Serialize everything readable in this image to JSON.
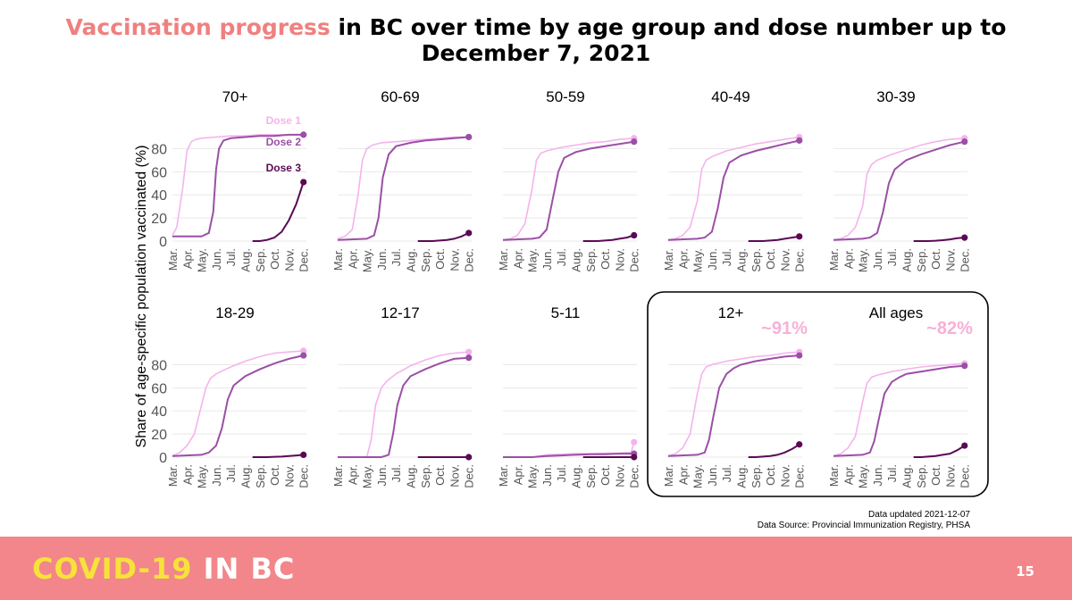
{
  "title": {
    "highlight": "Vaccination progress",
    "rest_line1": " in BC over time by age group and dose number up to",
    "line2": "December 7, 2021"
  },
  "y_axis_label": "Share of age-specific population vaccinated (%)",
  "footer": {
    "updated": "Data updated 2021-12-07",
    "source": "Data Source: Provincial Immunization Registry, PHSA"
  },
  "banner": {
    "brand_part1": "COVID-19",
    "brand_part2": "IN BC",
    "page_number": "15"
  },
  "colors": {
    "dose1": "#f5b3ec",
    "dose2": "#9b4fa6",
    "dose3": "#5a0a55",
    "grid": "#e8e8e8",
    "annotation": "#f7b0d7"
  },
  "chart_data": {
    "type": "line",
    "x_ticks": [
      "Mar.",
      "Apr.",
      "May.",
      "Jun.",
      "Jul.",
      "Aug.",
      "Sep.",
      "Oct.",
      "Nov.",
      "Dec."
    ],
    "y_ticks": [
      0,
      20,
      40,
      60,
      80
    ],
    "ylim": [
      0,
      95
    ],
    "xlim": [
      0,
      9.2
    ],
    "ylabel": "Share of age-specific population vaccinated (%)",
    "series_names": [
      "Dose 1",
      "Dose 2",
      "Dose 3"
    ],
    "panels": [
      {
        "title": "70+",
        "series": [
          {
            "name": "Dose 1",
            "x": [
              0,
              0.3,
              0.7,
              1.0,
              1.3,
              1.6,
              2,
              3,
              4,
              5,
              6,
              7,
              8,
              9
            ],
            "y": [
              5,
              12,
              45,
              78,
              86,
              88,
              89,
              90,
              91,
              91,
              92,
              92,
              92,
              92
            ]
          },
          {
            "name": "Dose 2",
            "x": [
              0,
              1,
              2,
              2.5,
              2.8,
              3.0,
              3.2,
              3.5,
              4,
              5,
              6,
              7,
              8,
              9
            ],
            "y": [
              4,
              4,
              4,
              7,
              25,
              62,
              80,
              87,
              89,
              90,
              91,
              91,
              92,
              92
            ]
          },
          {
            "name": "Dose 3",
            "x": [
              5.5,
              6,
              6.5,
              7,
              7.5,
              8,
              8.5,
              9
            ],
            "y": [
              0,
              0,
              1,
              3,
              8,
              18,
              32,
              51
            ]
          }
        ]
      },
      {
        "title": "60-69",
        "series": [
          {
            "name": "Dose 1",
            "x": [
              0,
              0.5,
              1,
              1.4,
              1.7,
              2,
              2.4,
              3,
              4,
              5,
              6,
              7,
              8,
              9
            ],
            "y": [
              2,
              4,
              10,
              40,
              70,
              80,
              83,
              85,
              86,
              87,
              88,
              89,
              90,
              90
            ]
          },
          {
            "name": "Dose 2",
            "x": [
              0,
              2,
              2.5,
              2.8,
              3.1,
              3.5,
              4,
              5,
              6,
              7,
              8,
              9
            ],
            "y": [
              1,
              2,
              5,
              20,
              55,
              75,
              82,
              85,
              87,
              88,
              89,
              90
            ]
          },
          {
            "name": "Dose 3",
            "x": [
              5.5,
              6,
              6.5,
              7,
              7.5,
              8,
              8.5,
              9
            ],
            "y": [
              0,
              0,
              0,
              0.5,
              1,
              2,
              4,
              7
            ]
          }
        ]
      },
      {
        "title": "50-59",
        "series": [
          {
            "name": "Dose 1",
            "x": [
              0,
              0.5,
              1,
              1.5,
              2,
              2.3,
              2.6,
              3,
              4,
              5,
              6,
              7,
              8,
              9
            ],
            "y": [
              1,
              2,
              5,
              15,
              45,
              70,
              76,
              78,
              81,
              83,
              85,
              86,
              88,
              89
            ]
          },
          {
            "name": "Dose 2",
            "x": [
              0,
              2,
              2.5,
              3,
              3.4,
              3.8,
              4.2,
              5,
              6,
              7,
              8,
              9
            ],
            "y": [
              1,
              2,
              3,
              10,
              35,
              60,
              72,
              77,
              80,
              82,
              84,
              86
            ]
          },
          {
            "name": "Dose 3",
            "x": [
              5.5,
              6,
              6.5,
              7,
              7.5,
              8,
              8.5,
              9
            ],
            "y": [
              0,
              0,
              0,
              0.5,
              1,
              2,
              3,
              5
            ]
          }
        ]
      },
      {
        "title": "40-49",
        "series": [
          {
            "name": "Dose 1",
            "x": [
              0,
              0.5,
              1,
              1.5,
              2,
              2.3,
              2.6,
              3,
              4,
              5,
              6,
              7,
              8,
              9
            ],
            "y": [
              1,
              2,
              5,
              12,
              35,
              62,
              70,
              73,
              78,
              81,
              84,
              86,
              88,
              90
            ]
          },
          {
            "name": "Dose 2",
            "x": [
              0,
              2,
              2.5,
              3,
              3.4,
              3.8,
              4.2,
              5,
              6,
              7,
              8,
              9
            ],
            "y": [
              1,
              2,
              3,
              8,
              28,
              55,
              68,
              74,
              78,
              81,
              84,
              87
            ]
          },
          {
            "name": "Dose 3",
            "x": [
              5.5,
              6,
              6.5,
              7,
              7.5,
              8,
              8.5,
              9
            ],
            "y": [
              0,
              0,
              0,
              0.5,
              1,
              2,
              3,
              4
            ]
          }
        ]
      },
      {
        "title": "30-39",
        "series": [
          {
            "name": "Dose 1",
            "x": [
              0,
              0.5,
              1,
              1.5,
              2,
              2.3,
              2.6,
              3,
              4,
              5,
              6,
              7,
              8,
              9
            ],
            "y": [
              1,
              2,
              5,
              12,
              30,
              58,
              66,
              70,
              75,
              79,
              83,
              86,
              88,
              89
            ]
          },
          {
            "name": "Dose 2",
            "x": [
              0,
              2,
              2.5,
              3,
              3.4,
              3.8,
              4.2,
              5,
              6,
              7,
              8,
              9
            ],
            "y": [
              1,
              2,
              3,
              7,
              25,
              50,
              62,
              70,
              75,
              79,
              83,
              86
            ]
          },
          {
            "name": "Dose 3",
            "x": [
              5.5,
              6,
              6.5,
              7,
              7.5,
              8,
              8.5,
              9
            ],
            "y": [
              0,
              0,
              0,
              0.3,
              0.8,
              1.5,
              2.5,
              3
            ]
          }
        ]
      },
      {
        "title": "18-29",
        "series": [
          {
            "name": "Dose 1",
            "x": [
              0,
              0.5,
              1,
              1.5,
              2,
              2.3,
              2.6,
              3,
              4,
              5,
              6,
              7,
              8,
              9
            ],
            "y": [
              1,
              4,
              10,
              20,
              45,
              60,
              68,
              72,
              78,
              83,
              87,
              90,
              91,
              92
            ]
          },
          {
            "name": "Dose 2",
            "x": [
              0,
              2,
              2.5,
              3,
              3.4,
              3.8,
              4.2,
              5,
              6,
              7,
              8,
              9
            ],
            "y": [
              1,
              2,
              4,
              10,
              25,
              50,
              62,
              70,
              76,
              81,
              85,
              88
            ]
          },
          {
            "name": "Dose 3",
            "x": [
              5.5,
              6,
              6.5,
              7,
              7.5,
              8,
              8.5,
              9
            ],
            "y": [
              0,
              0,
              0,
              0.3,
              0.5,
              1,
              1.5,
              2
            ]
          }
        ]
      },
      {
        "title": "12-17",
        "series": [
          {
            "name": "Dose 1",
            "x": [
              0,
              1,
              2,
              2.3,
              2.6,
              3,
              3.4,
              4,
              5,
              6,
              7,
              8,
              9
            ],
            "y": [
              0,
              0,
              0,
              15,
              45,
              60,
              66,
              72,
              79,
              84,
              88,
              90,
              91
            ]
          },
          {
            "name": "Dose 2",
            "x": [
              0,
              3,
              3.5,
              3.8,
              4.1,
              4.5,
              5,
              6,
              7,
              8,
              9
            ],
            "y": [
              0,
              0,
              2,
              20,
              45,
              62,
              70,
              76,
              81,
              85,
              86
            ]
          },
          {
            "name": "Dose 3",
            "x": [
              5.5,
              6,
              7,
              8,
              9
            ],
            "y": [
              0,
              0,
              0,
              0,
              0
            ]
          }
        ]
      },
      {
        "title": "5-11",
        "series": [
          {
            "name": "Dose 1",
            "x": [
              0,
              2,
              2.5,
              3,
              4,
              5,
              6,
              7,
              8,
              8.8,
              9
            ],
            "y": [
              0,
              0,
              1,
              2,
              2.5,
              3,
              3,
              3.5,
              3.5,
              4,
              13
            ]
          },
          {
            "name": "Dose 2",
            "x": [
              0,
              2,
              2.5,
              3,
              4,
              5,
              6,
              7,
              8,
              9
            ],
            "y": [
              0,
              0,
              0.5,
              1,
              1.5,
              2,
              2.5,
              2.5,
              3,
              3
            ]
          },
          {
            "name": "Dose 3",
            "x": [
              5.5,
              6,
              7,
              8,
              9
            ],
            "y": [
              0,
              0,
              0,
              0,
              0
            ]
          }
        ]
      },
      {
        "title": "12+",
        "annotation": "~91%",
        "series": [
          {
            "name": "Dose 1",
            "x": [
              0,
              0.5,
              1,
              1.5,
              2,
              2.3,
              2.6,
              3,
              4,
              5,
              6,
              7,
              8,
              9
            ],
            "y": [
              1,
              3,
              8,
              20,
              55,
              72,
              78,
              80,
              83,
              85,
              87,
              88,
              90,
              91
            ]
          },
          {
            "name": "Dose 2",
            "x": [
              0,
              2,
              2.5,
              2.8,
              3.1,
              3.5,
              4,
              4.5,
              5,
              6,
              7,
              8,
              9
            ],
            "y": [
              1,
              2,
              4,
              15,
              35,
              60,
              72,
              77,
              80,
              83,
              85,
              87,
              88
            ]
          },
          {
            "name": "Dose 3",
            "x": [
              5.5,
              6,
              6.5,
              7,
              7.5,
              8,
              8.5,
              9
            ],
            "y": [
              0,
              0,
              0.5,
              1,
              2,
              4,
              7,
              11
            ]
          }
        ]
      },
      {
        "title": "All ages",
        "annotation": "~82%",
        "series": [
          {
            "name": "Dose 1",
            "x": [
              0,
              0.5,
              1,
              1.5,
              2,
              2.3,
              2.6,
              3,
              4,
              5,
              6,
              7,
              8,
              9
            ],
            "y": [
              1,
              3,
              8,
              18,
              48,
              64,
              69,
              71,
              74,
              76,
              78,
              79,
              80,
              81
            ]
          },
          {
            "name": "Dose 2",
            "x": [
              0,
              2,
              2.5,
              2.8,
              3.1,
              3.5,
              4,
              4.5,
              5,
              6,
              7,
              8,
              9
            ],
            "y": [
              1,
              2,
              4,
              14,
              32,
              55,
              65,
              69,
              72,
              74,
              76,
              78,
              79
            ]
          },
          {
            "name": "Dose 3",
            "x": [
              5.5,
              6,
              6.5,
              7,
              7.5,
              8,
              8.5,
              9
            ],
            "y": [
              0,
              0,
              0.5,
              1,
              2,
              3,
              6,
              10
            ]
          }
        ]
      }
    ]
  }
}
